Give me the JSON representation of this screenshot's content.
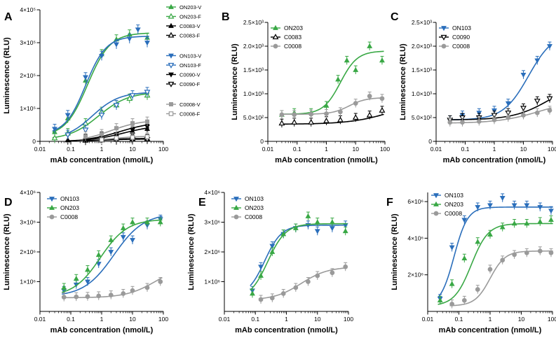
{
  "colors": {
    "green": "#39a845",
    "blue": "#2a6ebb",
    "gray": "#9a9a9a",
    "black": "#000000"
  },
  "chart_data": [
    {
      "panel": "A",
      "type": "line",
      "xscale": "log",
      "xlabel": "mAb concentration (nmol/L)",
      "ylabel": "Luminescence (RLU)",
      "xlim": [
        0.01,
        100
      ],
      "ylim": [
        0,
        400000
      ],
      "xticks": [
        0.01,
        0.1,
        1,
        10,
        100
      ],
      "xtick_labels": [
        "0.01",
        "0.1",
        "1",
        "10",
        "100"
      ],
      "yticks": [
        0,
        100000,
        200000,
        300000,
        400000
      ],
      "ytick_labels": [
        "0",
        "1×10⁵",
        "2×10⁵",
        "3×10⁵",
        "4×10⁵"
      ],
      "legend_position": "right",
      "legend_groups": [
        [
          "ON203-V",
          "ON203-F",
          "C0083-V",
          "C0083-F"
        ],
        [
          "ON103-V",
          "ON103-F",
          "C0090-V",
          "C0090-F"
        ],
        [
          "C0008-V",
          "C0008-F"
        ]
      ],
      "series": [
        {
          "name": "ON203-V",
          "color": "green",
          "marker": "tri-up",
          "fill": true,
          "x": [
            0.03,
            0.08,
            0.3,
            1,
            3,
            8,
            30
          ],
          "y": [
            28000,
            70000,
            185000,
            265000,
            310000,
            325000,
            315000
          ],
          "fit": {
            "bottom": 15000,
            "top": 330000,
            "ec50": 0.35,
            "hill": 1.2
          }
        },
        {
          "name": "ON203-F",
          "color": "green",
          "marker": "tri-up",
          "fill": false,
          "x": [
            0.03,
            0.08,
            0.3,
            1,
            3,
            8,
            30
          ],
          "y": [
            10000,
            25000,
            55000,
            90000,
            110000,
            130000,
            140000
          ],
          "fit": {
            "bottom": 5000,
            "top": 150000,
            "ec50": 0.8,
            "hill": 0.9
          }
        },
        {
          "name": "C0083-V",
          "color": "black",
          "marker": "tri-up",
          "fill": true,
          "x": [
            0.08,
            0.3,
            1,
            3,
            10,
            30
          ],
          "y": [
            4000,
            8000,
            15000,
            22000,
            30000,
            38000
          ],
          "fit": {
            "bottom": 0,
            "top": 50000,
            "ec50": 5,
            "hill": 0.8
          }
        },
        {
          "name": "C0083-F",
          "color": "black",
          "marker": "tri-up",
          "fill": false,
          "x": [
            0.3,
            1,
            3,
            10,
            30
          ],
          "y": [
            3000,
            4000,
            6000,
            8000,
            8000
          ],
          "fit": {
            "bottom": 0,
            "top": 9000,
            "ec50": 1,
            "hill": 1
          }
        },
        {
          "name": "ON103-V",
          "color": "blue",
          "marker": "tri-down",
          "fill": true,
          "x": [
            0.03,
            0.08,
            0.3,
            1,
            3,
            8,
            15,
            30
          ],
          "y": [
            38000,
            80000,
            195000,
            260000,
            295000,
            312000,
            340000,
            300000
          ],
          "fit": {
            "bottom": 20000,
            "top": 320000,
            "ec50": 0.3,
            "hill": 1.3
          }
        },
        {
          "name": "ON103-F",
          "color": "blue",
          "marker": "tri-down",
          "fill": false,
          "x": [
            0.08,
            0.3,
            1,
            3,
            10,
            30
          ],
          "y": [
            20000,
            35000,
            80000,
            110000,
            140000,
            150000
          ],
          "fit": {
            "bottom": 5000,
            "top": 150000,
            "ec50": 0.5,
            "hill": 1.0
          }
        },
        {
          "name": "C0090-V",
          "color": "black",
          "marker": "tri-down",
          "fill": true,
          "x": [
            0.3,
            1,
            3,
            10,
            30
          ],
          "y": [
            3000,
            10000,
            22000,
            35000,
            45000
          ],
          "fit": {
            "bottom": 0,
            "top": 60000,
            "ec50": 4,
            "hill": 0.8
          }
        },
        {
          "name": "C0090-F",
          "color": "black",
          "marker": "tri-down",
          "fill": false,
          "x": [
            1,
            3,
            10,
            30
          ],
          "y": [
            3000,
            4000,
            5000,
            6000
          ],
          "fit": {
            "bottom": 0,
            "top": 7000,
            "ec50": 1,
            "hill": 1
          }
        },
        {
          "name": "C0008-V",
          "color": "gray",
          "marker": "square",
          "fill": true,
          "x": [
            0.3,
            1,
            3,
            10,
            30
          ],
          "y": [
            15000,
            22000,
            40000,
            55000,
            60000
          ],
          "fit": {
            "bottom": 0,
            "top": 65000,
            "ec50": 2,
            "hill": 0.9
          }
        },
        {
          "name": "C0008-F",
          "color": "gray",
          "marker": "square",
          "fill": false,
          "x": [
            1,
            3,
            10,
            30
          ],
          "y": [
            5000,
            10000,
            12000,
            14000
          ],
          "fit": {
            "bottom": 0,
            "top": 16000,
            "ec50": 2,
            "hill": 1
          }
        }
      ]
    },
    {
      "panel": "B",
      "type": "line",
      "xscale": "log",
      "xlabel": "mAb concentration (nmol/L)",
      "ylabel": "Luminescence (RLU)",
      "xlim": [
        0.01,
        100
      ],
      "ylim": [
        0,
        2500
      ],
      "xticks": [
        0.01,
        0.1,
        1,
        10,
        100
      ],
      "xtick_labels": [
        "0.01",
        "0.1",
        "1",
        "10",
        "100"
      ],
      "yticks": [
        0,
        500,
        1000,
        1500,
        2000,
        2500
      ],
      "ytick_labels": [
        "0",
        "5.0×10²",
        "1.0×10³",
        "1.5×10³",
        "2.0×10³",
        "2.5×10³"
      ],
      "legend_position": "top-left",
      "series": [
        {
          "name": "ON203",
          "color": "green",
          "marker": "tri-up",
          "fill": true,
          "x": [
            0.03,
            0.08,
            0.3,
            1,
            2.5,
            5,
            10,
            30,
            80
          ],
          "y": [
            560,
            600,
            600,
            750,
            1300,
            1700,
            1500,
            2000,
            1700
          ],
          "fit": {
            "bottom": 570,
            "top": 1900,
            "ec50": 3,
            "hill": 1.5
          }
        },
        {
          "name": "C0083",
          "color": "black",
          "marker": "tri-up",
          "fill": false,
          "x": [
            0.03,
            0.08,
            0.3,
            1,
            3,
            10,
            30,
            80
          ],
          "y": [
            380,
            400,
            400,
            430,
            450,
            500,
            550,
            650
          ],
          "fit": {
            "bottom": 360,
            "top": 900,
            "ec50": 200,
            "hill": 0.6
          }
        },
        {
          "name": "C0008",
          "color": "gray",
          "marker": "circle",
          "fill": true,
          "x": [
            0.03,
            0.08,
            0.3,
            1,
            3,
            10,
            30,
            80
          ],
          "y": [
            560,
            560,
            570,
            580,
            620,
            800,
            950,
            900
          ],
          "fit": {
            "bottom": 570,
            "top": 920,
            "ec50": 6,
            "hill": 1.5
          }
        }
      ]
    },
    {
      "panel": "C",
      "type": "line",
      "xscale": "log",
      "xlabel": "mAb concentration (nmol/L)",
      "ylabel": "Luminescence (RLU)",
      "xlim": [
        0.01,
        100
      ],
      "ylim": [
        0,
        2500
      ],
      "xticks": [
        0.01,
        0.1,
        1,
        10,
        100
      ],
      "xtick_labels": [
        "0.01",
        "0.1",
        "1",
        "10",
        "100"
      ],
      "yticks": [
        0,
        500,
        1000,
        1500,
        2000,
        2500
      ],
      "ytick_labels": [
        "0",
        "5.0×10²",
        "1.0×10³",
        "1.5×10³",
        "2.0×10³",
        "2.5×10³"
      ],
      "legend_position": "top-left",
      "series": [
        {
          "name": "ON103",
          "color": "blue",
          "marker": "tri-down",
          "fill": true,
          "x": [
            0.03,
            0.08,
            0.3,
            1,
            3,
            10,
            30,
            80
          ],
          "y": [
            450,
            550,
            600,
            650,
            800,
            1400,
            1700,
            2000
          ],
          "fit": {
            "bottom": 450,
            "top": 2300,
            "ec50": 15,
            "hill": 1.0
          }
        },
        {
          "name": "C0090",
          "color": "black",
          "marker": "tri-down",
          "fill": false,
          "x": [
            0.03,
            0.08,
            0.3,
            1,
            3,
            10,
            30,
            80
          ],
          "y": [
            450,
            500,
            500,
            550,
            600,
            700,
            850,
            900
          ],
          "fit": {
            "bottom": 450,
            "top": 1300,
            "ec50": 80,
            "hill": 0.7
          }
        },
        {
          "name": "C0008",
          "color": "gray",
          "marker": "circle",
          "fill": true,
          "x": [
            0.03,
            0.08,
            0.3,
            1,
            3,
            10,
            30,
            80
          ],
          "y": [
            400,
            400,
            420,
            450,
            500,
            550,
            600,
            650
          ],
          "fit": {
            "bottom": 380,
            "top": 900,
            "ec50": 40,
            "hill": 0.6
          }
        }
      ]
    },
    {
      "panel": "D",
      "type": "line",
      "xscale": "log",
      "xlabel": "mAb concentration (nmol/L)",
      "ylabel": "Luminescence (RLU)",
      "xlim": [
        0.01,
        100
      ],
      "ylim": [
        0,
        4000000
      ],
      "xticks": [
        0.01,
        0.1,
        1,
        10,
        100
      ],
      "xtick_labels": [
        "0.01",
        "0.1",
        "1",
        "10",
        "100"
      ],
      "yticks": [
        1000000,
        2000000,
        3000000,
        4000000
      ],
      "ytick_labels": [
        "1×10⁶",
        "2×10⁶",
        "3×10⁶",
        "4×10⁶"
      ],
      "legend_position": "top-left",
      "series": [
        {
          "name": "ON103",
          "color": "blue",
          "marker": "tri-down",
          "fill": true,
          "x": [
            0.06,
            0.15,
            0.35,
            0.8,
            2,
            5,
            10,
            30,
            80
          ],
          "y": [
            700000,
            900000,
            1000000,
            1600000,
            2000000,
            2500000,
            2400000,
            2900000,
            3100000
          ],
          "fit": {
            "bottom": 500000,
            "top": 3300000,
            "ec50": 2.5,
            "hill": 0.9
          }
        },
        {
          "name": "ON203",
          "color": "green",
          "marker": "tri-up",
          "fill": true,
          "x": [
            0.06,
            0.15,
            0.35,
            0.8,
            2,
            5,
            10,
            30,
            80
          ],
          "y": [
            800000,
            1100000,
            1400000,
            1900000,
            2400000,
            2800000,
            3000000,
            3000000,
            3000000
          ],
          "fit": {
            "bottom": 500000,
            "top": 3100000,
            "ec50": 0.9,
            "hill": 1.0
          }
        },
        {
          "name": "C0008",
          "color": "gray",
          "marker": "circle",
          "fill": true,
          "x": [
            0.06,
            0.15,
            0.35,
            0.8,
            2,
            5,
            10,
            30,
            80
          ],
          "y": [
            480000,
            490000,
            500000,
            520000,
            550000,
            600000,
            700000,
            800000,
            1000000
          ],
          "fit": {
            "bottom": 460000,
            "top": 1600000,
            "ec50": 60,
            "hill": 0.9
          }
        }
      ]
    },
    {
      "panel": "E",
      "type": "line",
      "xscale": "log",
      "xlabel": "mAb concentration (nmol/L)",
      "ylabel": "Luminescence (RLU)",
      "xlim": [
        0.01,
        100
      ],
      "ylim": [
        0,
        4000000
      ],
      "xticks": [
        0.01,
        0.1,
        1,
        10,
        100
      ],
      "xtick_labels": [
        "0.01",
        "0.1",
        "1",
        "10",
        "100"
      ],
      "yticks": [
        1000000,
        2000000,
        3000000,
        4000000
      ],
      "ytick_labels": [
        "1×10⁶",
        "2×10⁶",
        "3×10⁶",
        "4×10⁶"
      ],
      "legend_position": "top-left",
      "series": [
        {
          "name": "ON103",
          "color": "blue",
          "marker": "tri-down",
          "fill": true,
          "x": [
            0.08,
            0.15,
            0.35,
            0.8,
            2,
            5,
            10,
            30,
            80
          ],
          "y": [
            700000,
            1500000,
            2200000,
            2600000,
            2800000,
            2900000,
            2700000,
            2800000,
            2900000
          ],
          "fit": {
            "bottom": 500000,
            "top": 2900000,
            "ec50": 0.2,
            "hill": 1.6
          }
        },
        {
          "name": "ON203",
          "color": "green",
          "marker": "tri-up",
          "fill": true,
          "x": [
            0.08,
            0.15,
            0.35,
            0.8,
            2,
            5,
            10,
            30,
            80
          ],
          "y": [
            600000,
            1200000,
            2000000,
            2600000,
            2800000,
            3200000,
            3000000,
            3000000,
            2700000
          ],
          "fit": {
            "bottom": 400000,
            "top": 2950000,
            "ec50": 0.25,
            "hill": 1.5
          }
        },
        {
          "name": "C0008",
          "color": "gray",
          "marker": "circle",
          "fill": true,
          "x": [
            0.15,
            0.35,
            0.8,
            2,
            5,
            10,
            30,
            80
          ],
          "y": [
            400000,
            450000,
            600000,
            800000,
            1000000,
            1200000,
            1300000,
            1500000
          ],
          "fit": {
            "bottom": 380000,
            "top": 1500000,
            "ec50": 3,
            "hill": 1.0
          }
        }
      ]
    },
    {
      "panel": "F",
      "type": "line",
      "xscale": "log",
      "xlabel": "mAb concentration (nmol/L)",
      "ylabel": "Luminescence (RLU)",
      "xlim": [
        0.01,
        100
      ],
      "ylim": [
        0,
        6500000
      ],
      "xticks": [
        0.01,
        0.1,
        1,
        10,
        100
      ],
      "xtick_labels": [
        "0.01",
        "0.1",
        "1",
        "10",
        "100"
      ],
      "yticks": [
        2000000,
        4000000,
        6000000
      ],
      "ytick_labels": [
        "2×10⁶",
        "4×10⁶",
        "6×10⁶"
      ],
      "legend_position": "top-left",
      "series": [
        {
          "name": "ON103",
          "color": "blue",
          "marker": "tri-down",
          "fill": true,
          "x": [
            0.025,
            0.06,
            0.15,
            0.4,
            1,
            2.5,
            6,
            15,
            40,
            90
          ],
          "y": [
            700000,
            3500000,
            5000000,
            5700000,
            5800000,
            6200000,
            5800000,
            5800000,
            5700000,
            5500000
          ],
          "fit": {
            "bottom": 300000,
            "top": 5700000,
            "ec50": 0.07,
            "hill": 2.0
          }
        },
        {
          "name": "ON203",
          "color": "green",
          "marker": "tri-up",
          "fill": true,
          "x": [
            0.025,
            0.06,
            0.15,
            0.4,
            1,
            2.5,
            6,
            15,
            40,
            90
          ],
          "y": [
            600000,
            1500000,
            2900000,
            3800000,
            4200000,
            4600000,
            4800000,
            4800000,
            4900000,
            5000000
          ],
          "fit": {
            "bottom": 300000,
            "top": 4800000,
            "ec50": 0.25,
            "hill": 1.6
          }
        },
        {
          "name": "C0008",
          "color": "gray",
          "marker": "circle",
          "fill": true,
          "x": [
            0.06,
            0.15,
            0.4,
            1,
            2.5,
            6,
            15,
            40,
            90
          ],
          "y": [
            400000,
            600000,
            1200000,
            2300000,
            2800000,
            3100000,
            3200000,
            3300000,
            3200000
          ],
          "fit": {
            "bottom": 300000,
            "top": 3300000,
            "ec50": 1.0,
            "hill": 1.8
          }
        }
      ]
    }
  ]
}
